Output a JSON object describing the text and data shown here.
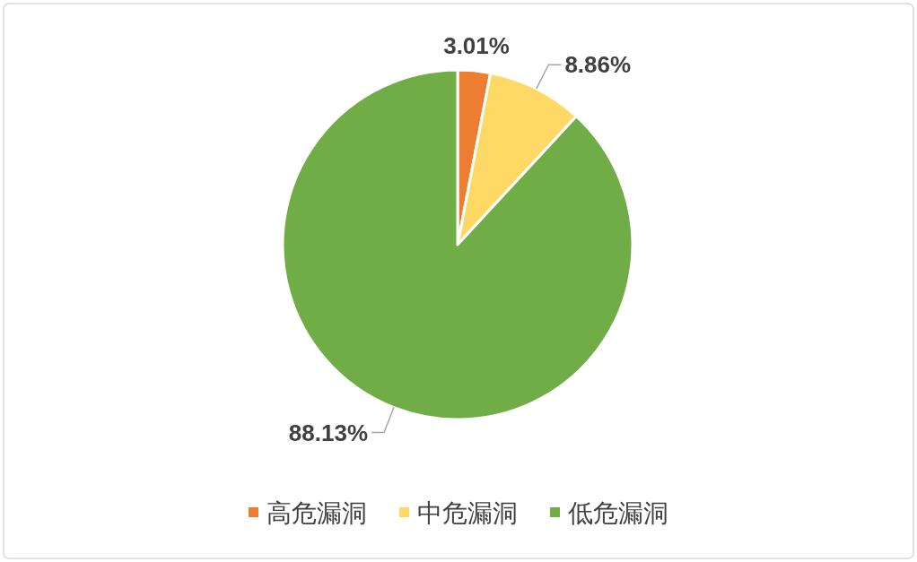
{
  "chart_data": {
    "type": "pie",
    "categories": [
      "高危漏洞",
      "中危漏洞",
      "低危漏洞"
    ],
    "values": [
      3.01,
      8.86,
      88.13
    ],
    "colors": [
      "#ed7d31",
      "#ffd966",
      "#70ad47"
    ],
    "value_labels": [
      "3.01%",
      "8.86%",
      "88.13%"
    ],
    "legend": "bottom"
  }
}
